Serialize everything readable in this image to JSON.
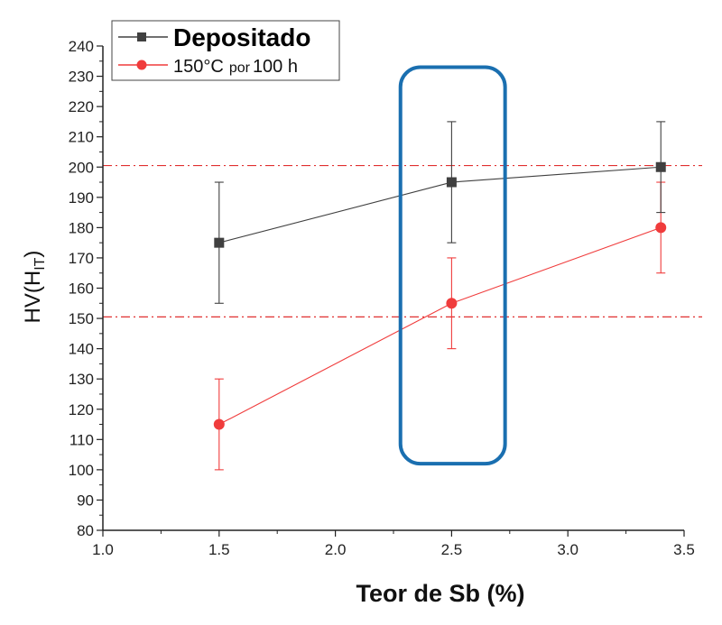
{
  "chart_data": {
    "type": "line",
    "title": "",
    "xlabel": "Teor de Sb (%)",
    "ylabel": "HV(H",
    "ylabel_sub": "IT",
    "ylabel_close": ")",
    "xlim": [
      1.0,
      3.5
    ],
    "ylim": [
      80,
      240
    ],
    "x_ticks": [
      "1.0",
      "1.5",
      "2.0",
      "2.5",
      "3.0",
      "3.5"
    ],
    "y_ticks": [
      "80",
      "90",
      "100",
      "110",
      "120",
      "130",
      "140",
      "150",
      "160",
      "170",
      "180",
      "190",
      "200",
      "210",
      "220",
      "230",
      "240"
    ],
    "grid": false,
    "legend_position": "top-left",
    "series": [
      {
        "name": "Depositado",
        "marker": "square",
        "color": "#404040",
        "points": [
          {
            "x": 1.5,
            "y": 175,
            "err_low": 155,
            "err_high": 195
          },
          {
            "x": 2.5,
            "y": 195,
            "err_low": 175,
            "err_high": 215
          },
          {
            "x": 3.4,
            "y": 200,
            "err_low": 185,
            "err_high": 215
          }
        ]
      },
      {
        "name_parts": [
          "150°C",
          "por",
          "100 h"
        ],
        "marker": "circle",
        "color": "#f03c3c",
        "points": [
          {
            "x": 1.5,
            "y": 115,
            "err_low": 100,
            "err_high": 130
          },
          {
            "x": 2.5,
            "y": 155,
            "err_low": 140,
            "err_high": 170
          },
          {
            "x": 3.4,
            "y": 180,
            "err_low": 165,
            "err_high": 195
          }
        ]
      }
    ],
    "reference_lines": [
      {
        "y": 200.5,
        "style": "dash-dot",
        "color": "#e03030"
      },
      {
        "y": 150.5,
        "style": "dash-dot",
        "color": "#e03030"
      }
    ],
    "highlight": {
      "x_range": [
        2.28,
        2.73
      ],
      "y_range": [
        102,
        233
      ],
      "color": "#1a6fb0"
    }
  }
}
